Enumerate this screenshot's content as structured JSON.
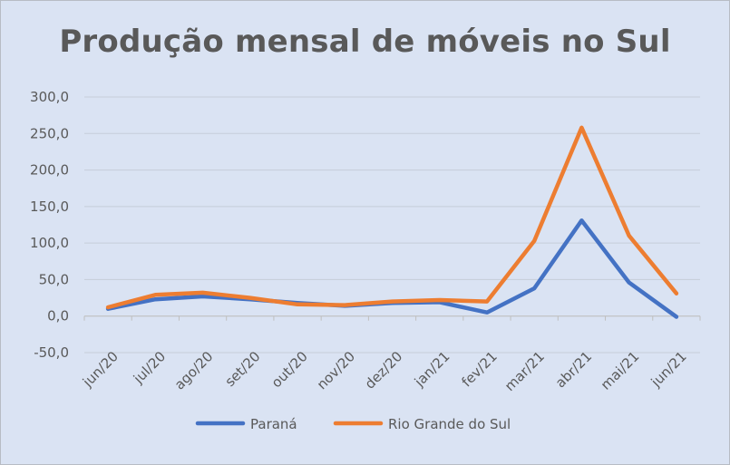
{
  "chart_data": {
    "type": "line",
    "title": "Produção mensal de móveis no Sul",
    "categories": [
      "jun/20",
      "jul/20",
      "ago/20",
      "set/20",
      "out/20",
      "nov/20",
      "dez/20",
      "jan/21",
      "fev/21",
      "mar/21",
      "abr/21",
      "mai/21",
      "jun/21"
    ],
    "series": [
      {
        "name": "Paraná",
        "color": "#4472c4",
        "values": [
          10,
          23,
          27,
          23,
          18,
          14,
          18,
          19,
          5,
          38,
          131,
          46,
          -1
        ]
      },
      {
        "name": "Rio Grande do Sul",
        "color": "#ed7d31",
        "values": [
          12,
          29,
          32,
          25,
          16,
          15,
          20,
          22,
          20,
          103,
          258,
          110,
          31
        ]
      }
    ],
    "y_ticks": [
      "300,0",
      "250,0",
      "200,0",
      "150,0",
      "100,0",
      "50,0",
      "0,0",
      "-50,0"
    ],
    "ylim": [
      -50,
      300
    ],
    "xlabel": "",
    "ylabel": "",
    "grid": true,
    "legend_position": "bottom"
  }
}
